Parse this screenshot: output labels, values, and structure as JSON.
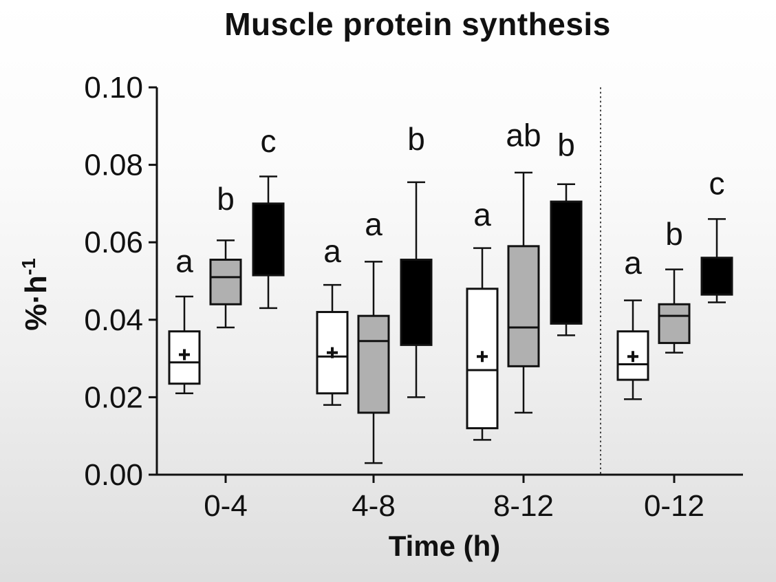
{
  "chart_data": {
    "type": "boxplot",
    "title": "Muscle protein synthesis",
    "xlabel": "Time (h)",
    "ylabel": "%·h⁻¹",
    "ylabel_base": "%·h",
    "ylabel_sup": "-1",
    "ylim": [
      0.0,
      0.1
    ],
    "ytick_labels": [
      "0.00",
      "0.02",
      "0.04",
      "0.06",
      "0.08",
      "0.10"
    ],
    "yticks": [
      0.0,
      0.02,
      0.04,
      0.06,
      0.08,
      0.1
    ],
    "categories": [
      "0-4",
      "4-8",
      "8-12",
      "0-12"
    ],
    "grid": false,
    "legend": "none",
    "separator": {
      "style": "dotted-vertical-line",
      "between": [
        "8-12",
        "0-12"
      ]
    },
    "colors": {
      "white_box": "#ffffff",
      "grey_box": "#b0b0b0",
      "black_box": "#000000",
      "stroke": "#111111"
    },
    "series": [
      {
        "name": "white",
        "fill": "#ffffff",
        "boxes": [
          {
            "category": "0-4",
            "low": 0.021,
            "q1": 0.0235,
            "median": 0.029,
            "mean": 0.031,
            "q3": 0.037,
            "high": 0.046,
            "sig_label": "a",
            "sig_label_y": 0.0545
          },
          {
            "category": "4-8",
            "low": 0.018,
            "q1": 0.021,
            "median": 0.0305,
            "mean": 0.0315,
            "q3": 0.042,
            "high": 0.049,
            "sig_label": "a",
            "sig_label_y": 0.057
          },
          {
            "category": "8-12",
            "low": 0.009,
            "q1": 0.012,
            "median": 0.027,
            "mean": 0.0305,
            "q3": 0.048,
            "high": 0.0585,
            "sig_label": "a",
            "sig_label_y": 0.0665
          },
          {
            "category": "0-12",
            "low": 0.0195,
            "q1": 0.0245,
            "median": 0.0285,
            "mean": 0.0305,
            "q3": 0.037,
            "high": 0.045,
            "sig_label": "a",
            "sig_label_y": 0.054
          }
        ]
      },
      {
        "name": "grey",
        "fill": "#b0b0b0",
        "boxes": [
          {
            "category": "0-4",
            "low": 0.038,
            "q1": 0.044,
            "median": 0.051,
            "mean": null,
            "q3": 0.0555,
            "high": 0.0605,
            "sig_label": "b",
            "sig_label_y": 0.0705
          },
          {
            "category": "4-8",
            "low": 0.003,
            "q1": 0.016,
            "median": 0.0345,
            "mean": null,
            "q3": 0.041,
            "high": 0.055,
            "sig_label": "a",
            "sig_label_y": 0.064
          },
          {
            "category": "8-12",
            "low": 0.016,
            "q1": 0.028,
            "median": 0.038,
            "mean": null,
            "q3": 0.059,
            "high": 0.078,
            "sig_label": "ab",
            "sig_label_y": 0.087
          },
          {
            "category": "0-12",
            "low": 0.0315,
            "q1": 0.034,
            "median": 0.041,
            "mean": null,
            "q3": 0.044,
            "high": 0.053,
            "sig_label": "b",
            "sig_label_y": 0.0615
          }
        ]
      },
      {
        "name": "black",
        "fill": "#000000",
        "boxes": [
          {
            "category": "0-4",
            "low": 0.043,
            "q1": 0.0515,
            "median": null,
            "mean": null,
            "q3": 0.07,
            "high": 0.077,
            "sig_label": "c",
            "sig_label_y": 0.0855
          },
          {
            "category": "4-8",
            "low": 0.02,
            "q1": 0.0335,
            "median": null,
            "mean": null,
            "q3": 0.0555,
            "high": 0.0755,
            "sig_label": "b",
            "sig_label_y": 0.086
          },
          {
            "category": "8-12",
            "low": 0.036,
            "q1": 0.039,
            "median": null,
            "mean": null,
            "q3": 0.0705,
            "high": 0.075,
            "sig_label": "b",
            "sig_label_y": 0.0845
          },
          {
            "category": "0-12",
            "low": 0.0445,
            "q1": 0.0465,
            "median": null,
            "mean": null,
            "q3": 0.056,
            "high": 0.066,
            "sig_label": "c",
            "sig_label_y": 0.0745
          }
        ]
      }
    ]
  }
}
